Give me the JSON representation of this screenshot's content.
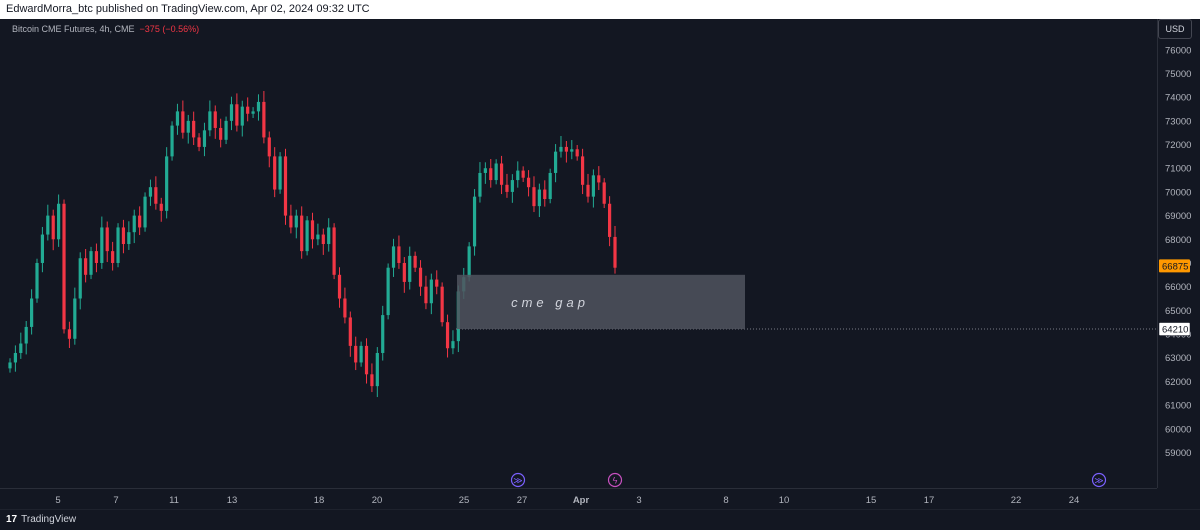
{
  "header": {
    "publisher_line": "EdwardMorra_btc published on TradingView.com, Apr 02, 2024 09:32 UTC"
  },
  "legend": {
    "symbol": "Bitcoin CME Futures, 4h, CME",
    "change": "−375 (−0.56%)"
  },
  "currency": "USD",
  "footer": {
    "logo_glyph": "17",
    "brand": "TradingView"
  },
  "colors": {
    "up": "#22ab94",
    "down": "#f23645",
    "background": "#131722",
    "last_price_label": "#ff9800",
    "gap_box": "#50535e"
  },
  "chart_data": {
    "type": "candlestick",
    "interval": "4h",
    "ylim": [
      57500,
      77300
    ],
    "price_ticks": [
      59000,
      60000,
      61000,
      62000,
      63000,
      64000,
      65000,
      66000,
      67000,
      68000,
      69000,
      70000,
      71000,
      72000,
      73000,
      74000,
      75000,
      76000
    ],
    "x_ticks": [
      "5",
      "7",
      "11",
      "13",
      "18",
      "20",
      "25",
      "27",
      "Apr",
      "3",
      "8",
      "10",
      "15",
      "17",
      "22",
      "24"
    ],
    "last_price": {
      "value": "66875",
      "y": 66875
    },
    "gap_line": {
      "value": "64210",
      "y": 64210
    },
    "annotation": {
      "text": "cme gap",
      "top": 66500,
      "bottom": 64210
    },
    "event_markers": [
      {
        "type": "dividend",
        "glyph": "≫"
      },
      {
        "type": "split",
        "glyph": "ϟ"
      },
      {
        "type": "dividend",
        "glyph": "≫"
      }
    ],
    "closes": [
      62800,
      63200,
      63600,
      64300,
      65500,
      67000,
      68200,
      69000,
      68000,
      69500,
      64200,
      63800,
      65500,
      67200,
      66500,
      67500,
      67000,
      68500,
      67500,
      67000,
      68500,
      67800,
      68300,
      69000,
      68500,
      69800,
      70200,
      69500,
      69200,
      71500,
      72800,
      73400,
      72500,
      73000,
      72300,
      71900,
      72600,
      73400,
      72700,
      72200,
      73000,
      73700,
      72800,
      73600,
      73300,
      73400,
      73800,
      72300,
      71500,
      70100,
      71500,
      69000,
      68500,
      69000,
      67500,
      68800,
      68000,
      68200,
      67800,
      68500,
      66500,
      65500,
      64700,
      63500,
      62800,
      63500,
      62300,
      61800,
      63200,
      64800,
      66800,
      67700,
      67000,
      66200,
      67300,
      66800,
      66000,
      65300,
      66300,
      66000,
      64500,
      63400,
      63700,
      65800,
      66400,
      67700,
      69800,
      70800,
      71000,
      70500,
      71200,
      70300,
      70000,
      70500,
      70900,
      70600,
      70200,
      69400,
      70100,
      69700,
      70800,
      71700,
      71900,
      71700,
      71800,
      71500,
      70300,
      69800,
      70700,
      70400,
      69500,
      68100,
      66800
    ]
  }
}
